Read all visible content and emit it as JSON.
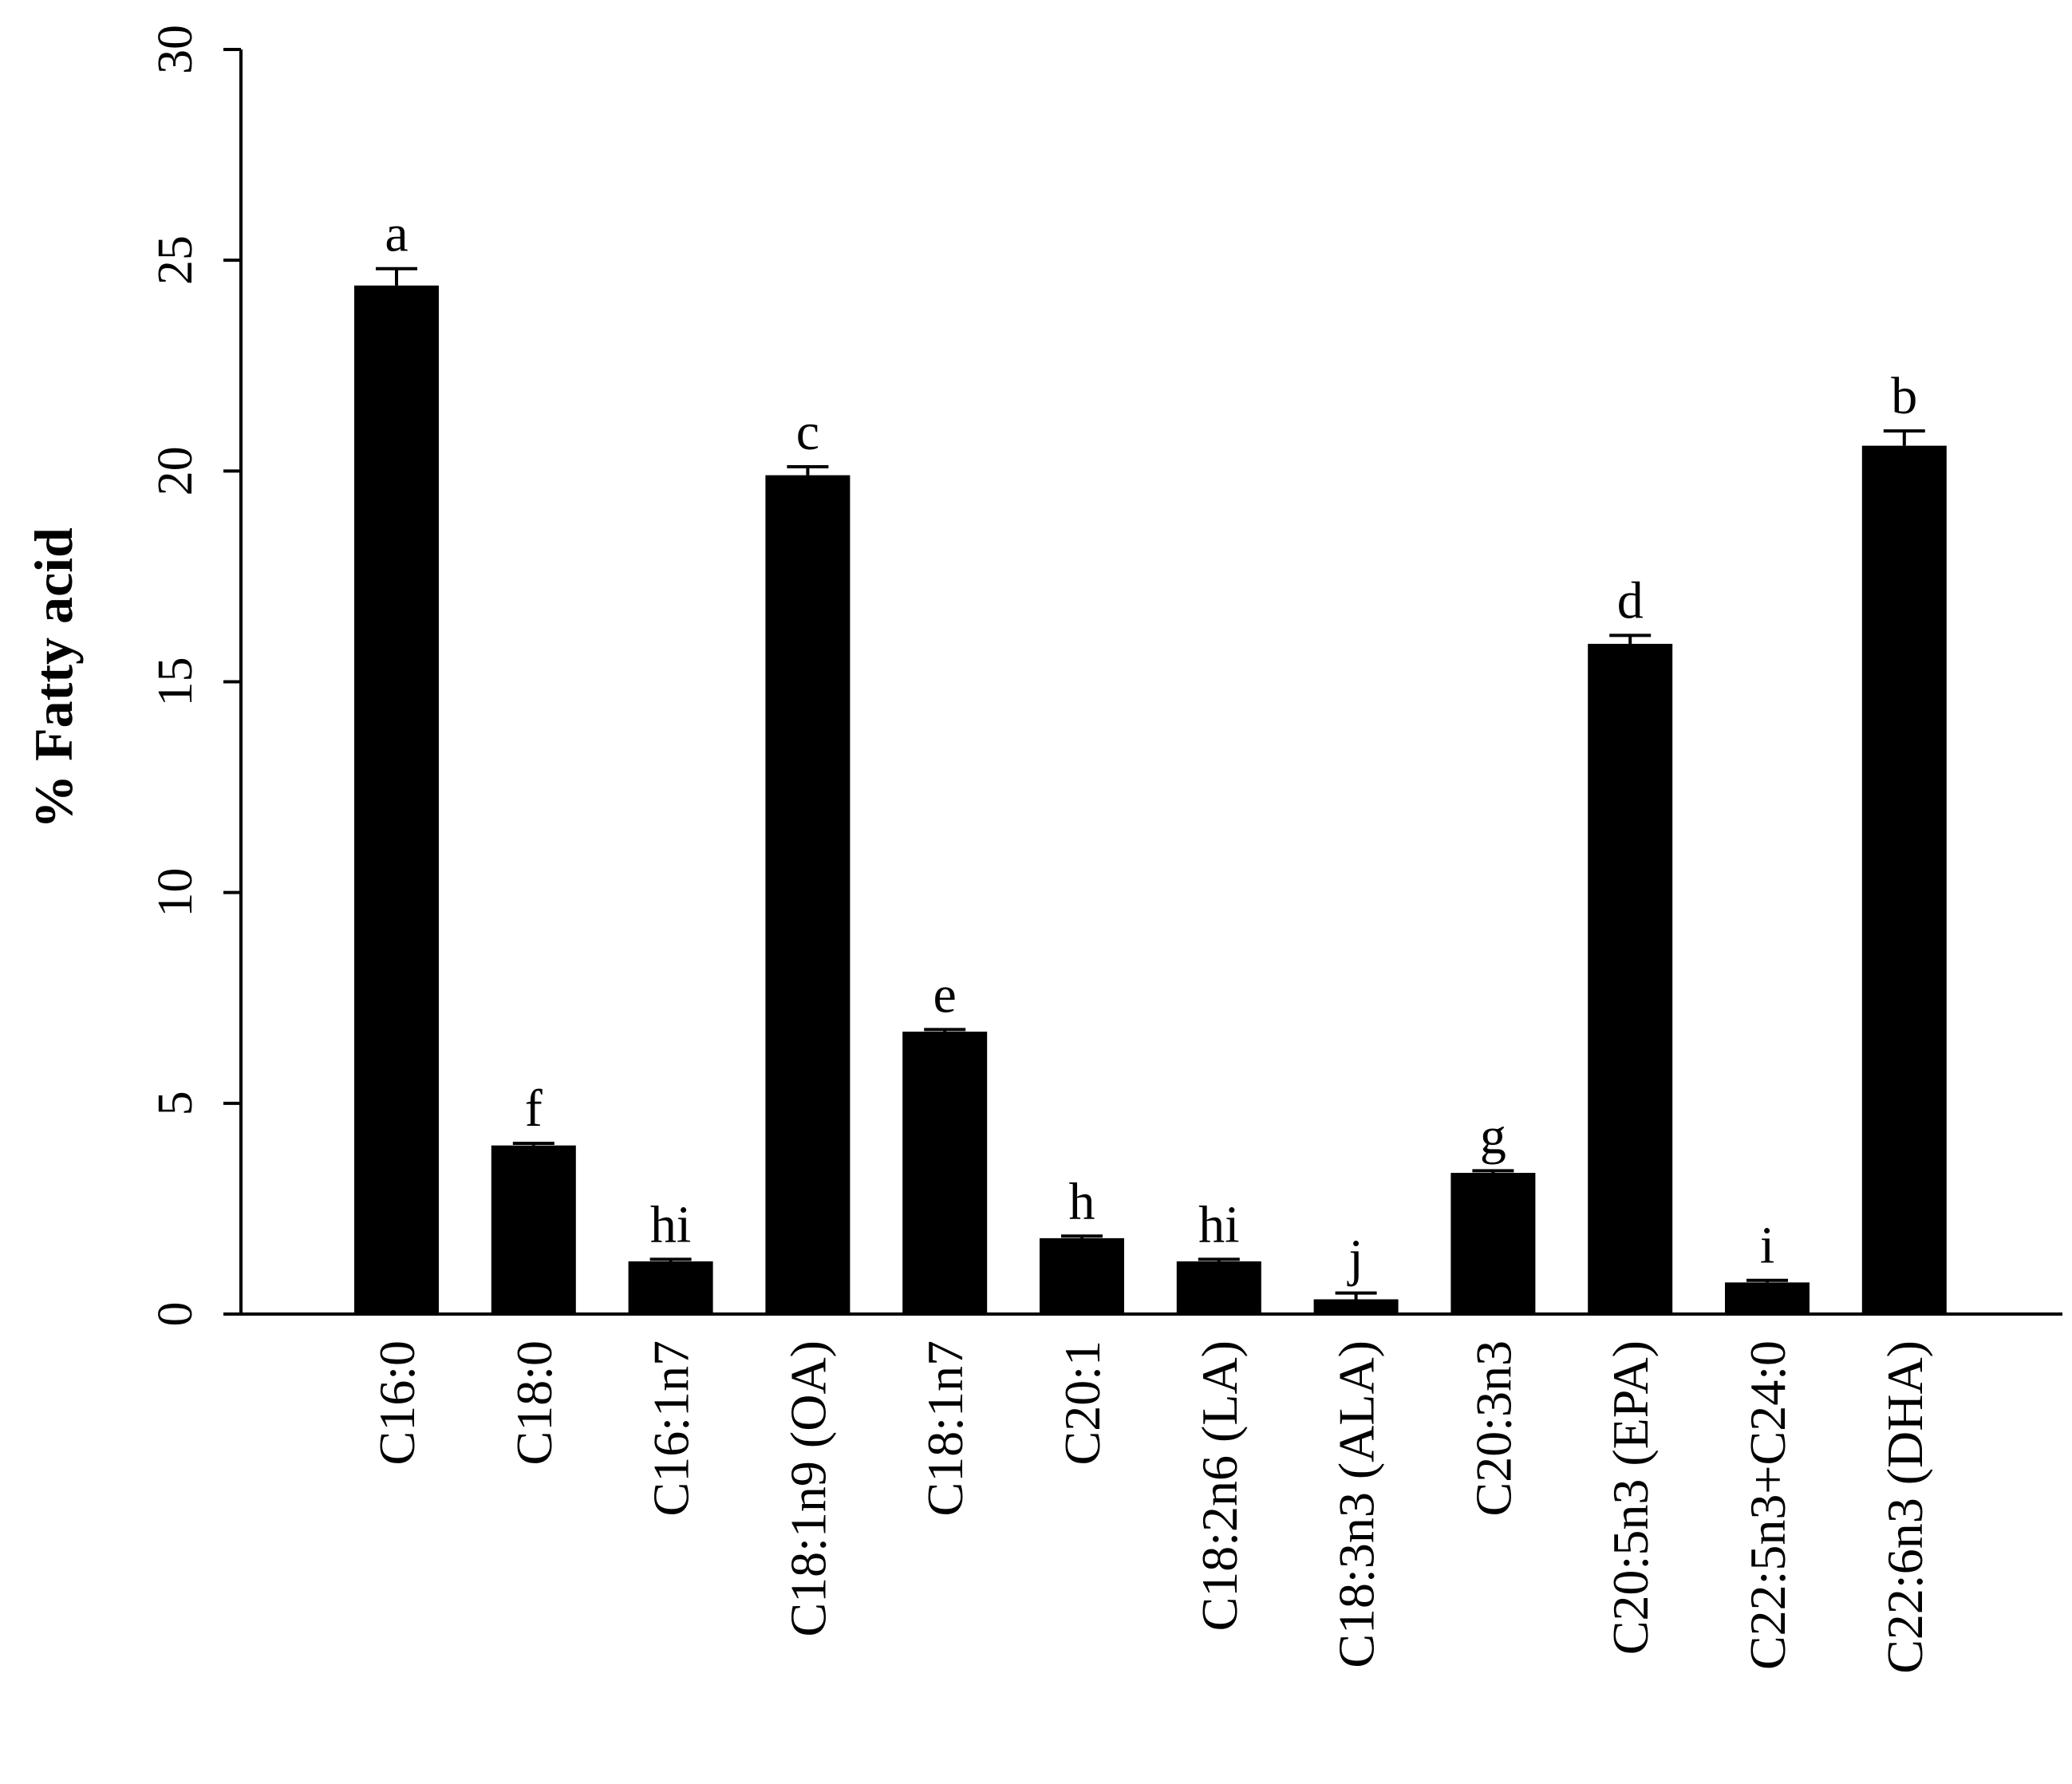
{
  "chart_data": {
    "type": "bar",
    "title": "",
    "xlabel": "",
    "ylabel": "% Fatty acid",
    "ylim": [
      0,
      30
    ],
    "yticks": [
      0,
      5,
      10,
      15,
      20,
      25,
      30
    ],
    "grid": false,
    "legend": "none",
    "bar_color": "#000000",
    "categories": [
      "C16:0",
      "C18:0",
      "C16:1n7",
      "C18:1n9 (OA)",
      "C18:1n7",
      "C20:1",
      "C18:2n6 (LA)",
      "C18:3n3 (ALA)",
      "C20:3n3",
      "C20:5n3 (EPA)",
      "C22:5n3+C24:0",
      "C22:6n3 (DHA)"
    ],
    "values": [
      24.4,
      4.0,
      1.25,
      19.9,
      6.7,
      1.8,
      1.25,
      0.35,
      3.35,
      15.9,
      0.75,
      20.6
    ],
    "errors": [
      0.4,
      0.05,
      0.05,
      0.2,
      0.05,
      0.05,
      0.05,
      0.15,
      0.05,
      0.2,
      0.05,
      0.35
    ],
    "significance_letters": [
      "a",
      "f",
      "hi",
      "c",
      "e",
      "h",
      "hi",
      "j",
      "g",
      "d",
      "i",
      "b"
    ]
  }
}
